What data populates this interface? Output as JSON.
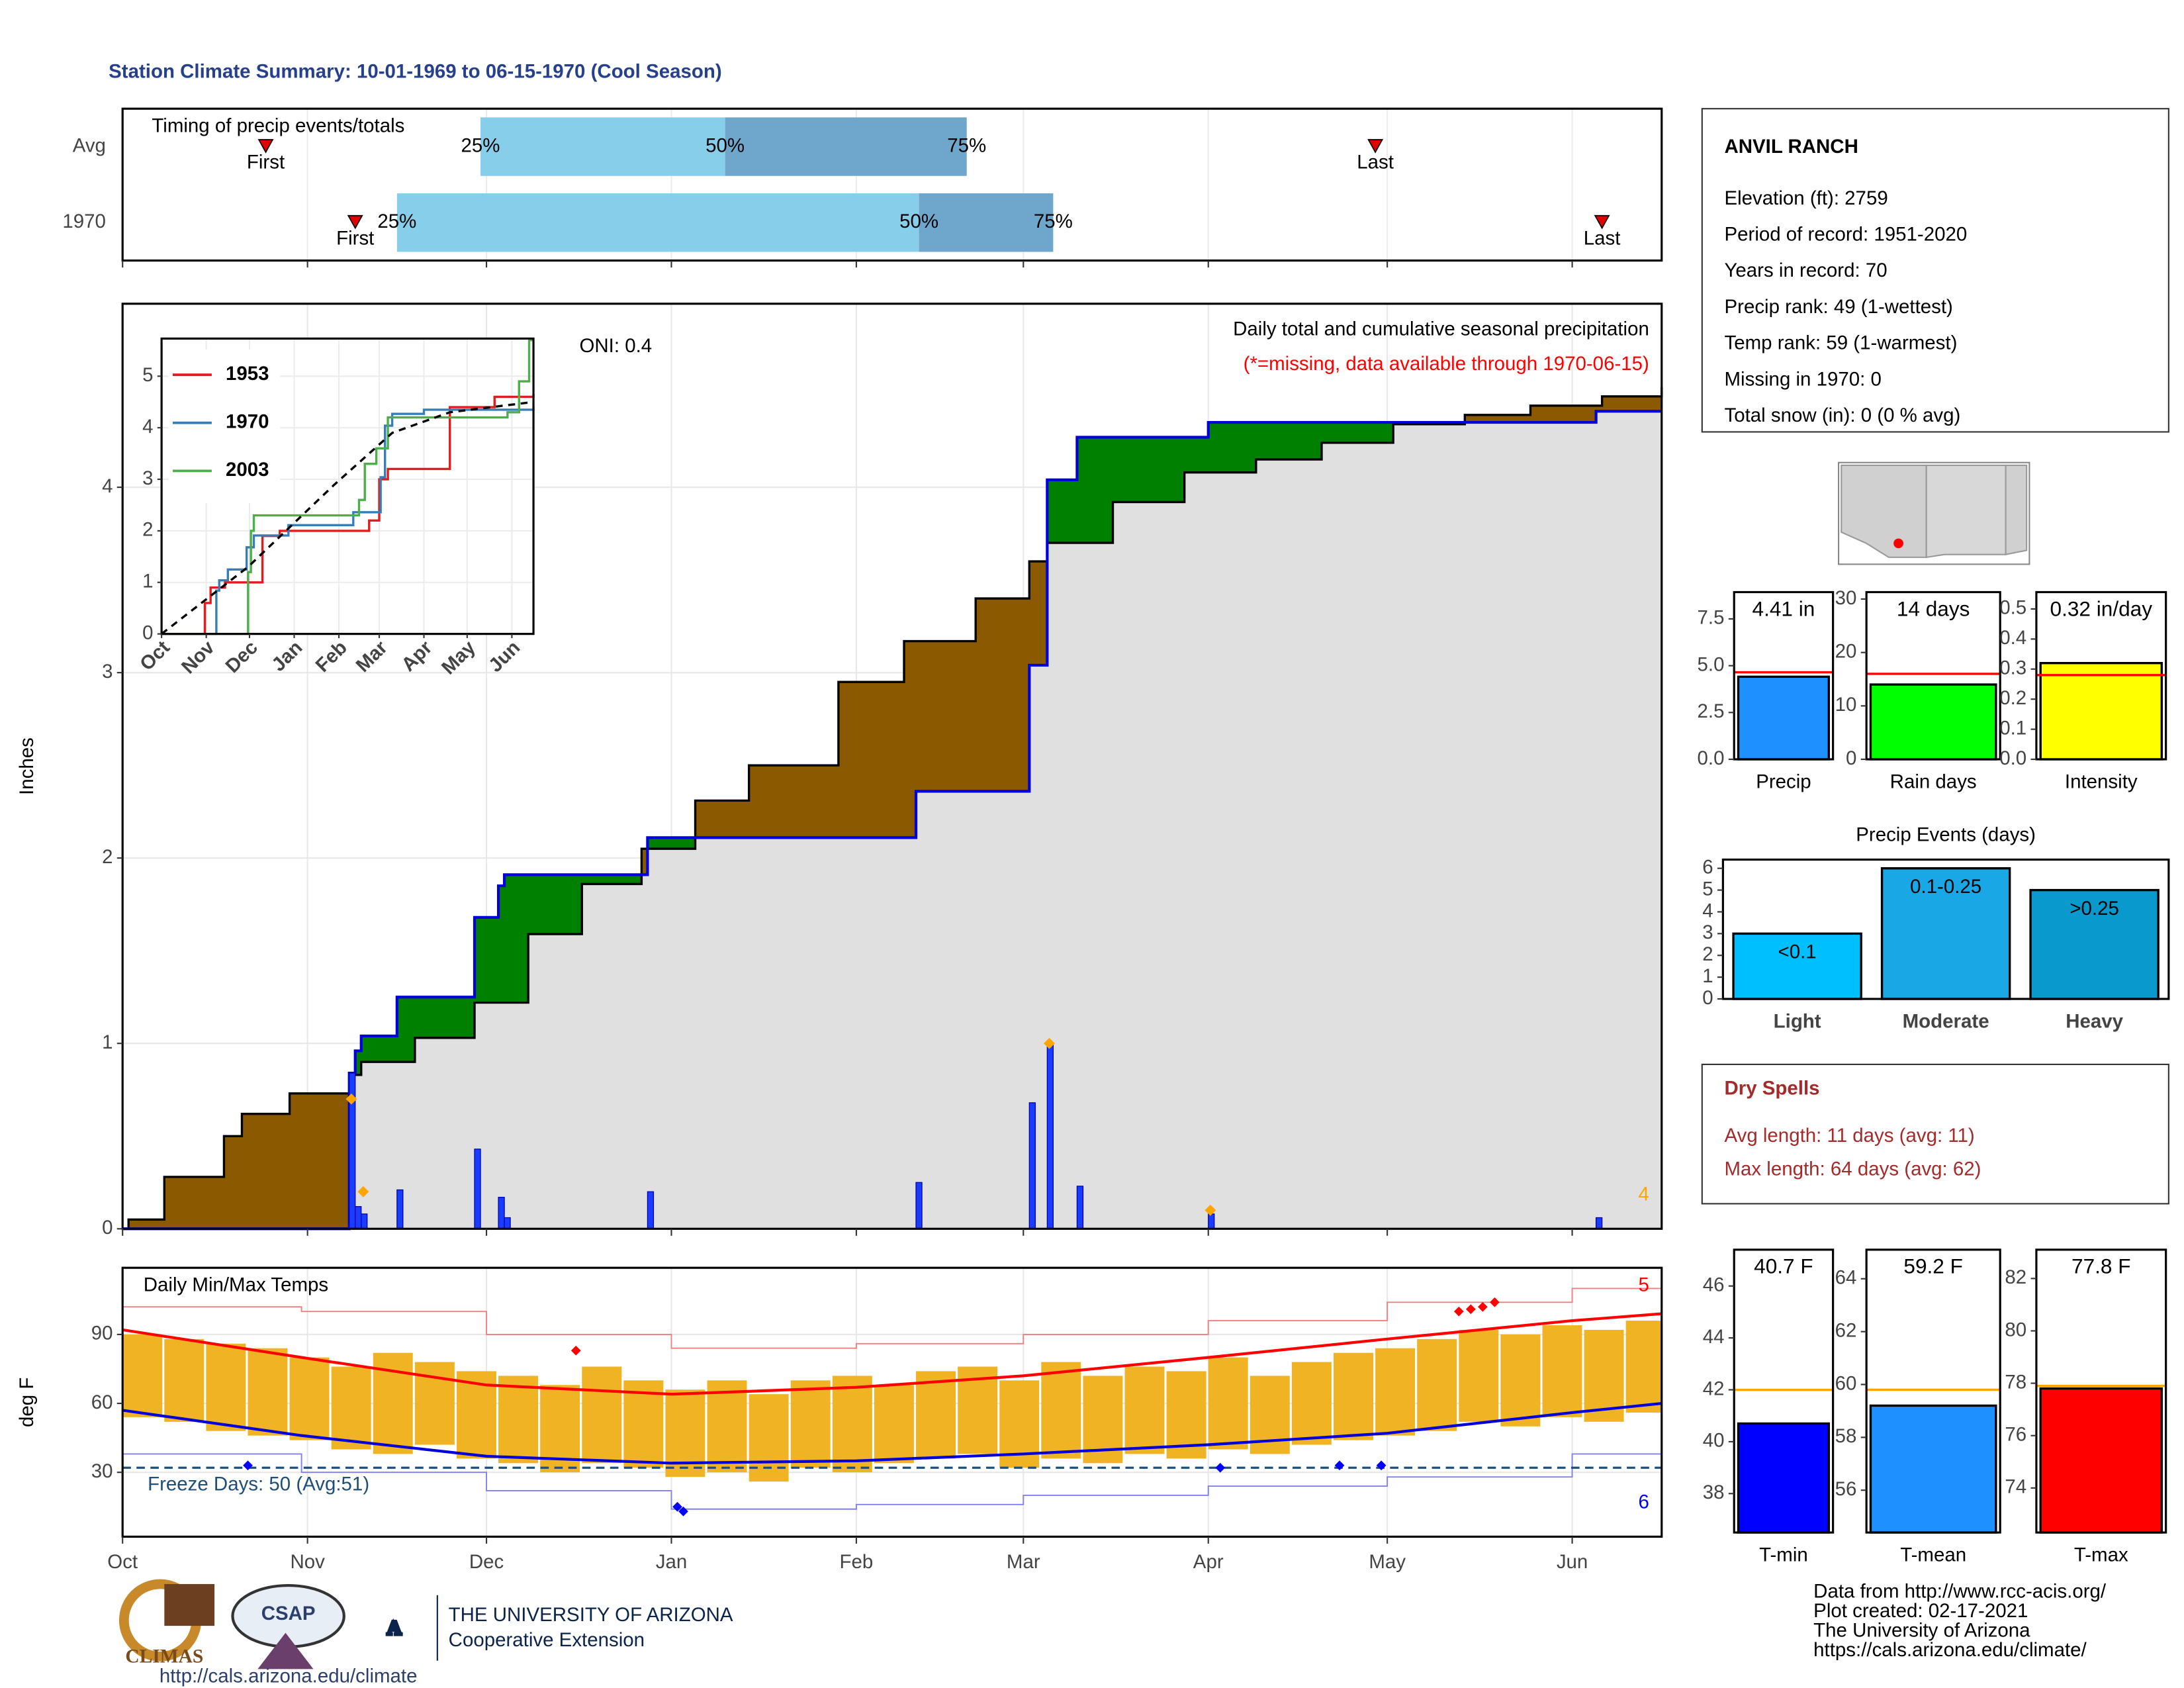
{
  "title": "Station Climate Summary: 10-01-1969 to 06-15-1970 (Cool Season)",
  "chart_data": [
    {
      "type": "timing",
      "title": "Timing of precip events/totals",
      "xlim": [
        0,
        258
      ],
      "xticks": [
        0,
        31,
        61,
        92,
        123,
        151,
        182,
        212,
        243
      ],
      "first_label": "First",
      "last_label": "Last",
      "quantile_labels": [
        "25%",
        "50%",
        "75%"
      ],
      "colors": [
        "#87ceeb",
        "#6fa6cc"
      ],
      "marker_color": "#e00000",
      "rows": [
        {
          "name": "Avg",
          "first": 24,
          "q25": 60,
          "q50": 101,
          "q75": 141.5,
          "last": 210
        },
        {
          "name": "1970",
          "first": 39,
          "q25": 46,
          "q50": 133.5,
          "q75": 156,
          "last": 248
        }
      ]
    },
    {
      "type": "cumulative",
      "title": "Daily total and cumulative seasonal precipitation",
      "subtitle": "(*=missing, data available through 1970-06-15)",
      "annotation": "ONI: 0.4",
      "ylabel": "Inches",
      "xlim": [
        0,
        258
      ],
      "xticks": [
        0,
        31,
        61,
        92,
        123,
        151,
        182,
        212,
        243
      ],
      "ylim": [
        0,
        4.99
      ],
      "yticks": [
        0,
        1,
        2,
        3,
        4
      ],
      "grid": true,
      "colors": {
        "below": "#8b5a00",
        "above": "#008000",
        "base": "#e0e0e0",
        "avg_line": "#000000",
        "current_line": "#0000dd",
        "daily": "#1a3cff",
        "markers": "#ffa500"
      },
      "avg": {
        "x": [
          0,
          1,
          7,
          17,
          20,
          28,
          38,
          40,
          49,
          59,
          68,
          77,
          87,
          96,
          105,
          120,
          131,
          143,
          152,
          155,
          166,
          178,
          190,
          201,
          213,
          225,
          236,
          248,
          258
        ],
        "values": [
          0,
          0.05,
          0.28,
          0.5,
          0.62,
          0.73,
          0.83,
          0.9,
          1.03,
          1.22,
          1.59,
          1.86,
          2.05,
          2.31,
          2.5,
          2.95,
          3.17,
          3.4,
          3.6,
          3.7,
          3.92,
          4.08,
          4.15,
          4.24,
          4.34,
          4.39,
          4.44,
          4.49,
          4.54
        ]
      },
      "current": {
        "x": [
          0,
          38,
          39,
          40,
          46,
          59,
          63,
          64,
          88,
          133,
          152,
          155,
          160,
          182,
          247,
          258
        ],
        "values": [
          0,
          0.84,
          0.96,
          1.04,
          1.25,
          1.68,
          1.85,
          1.91,
          2.11,
          2.36,
          3.04,
          4.04,
          4.27,
          4.35,
          4.41,
          4.41
        ]
      },
      "daily": {
        "x": [
          38,
          39,
          40,
          46,
          59,
          63,
          64,
          88,
          133,
          152,
          155,
          160,
          182,
          247
        ],
        "values": [
          0.84,
          0.12,
          0.08,
          0.21,
          0.43,
          0.17,
          0.06,
          0.2,
          0.25,
          0.68,
          1.0,
          0.23,
          0.08,
          0.06
        ]
      },
      "markers": {
        "x": [
          38,
          40,
          155,
          182
        ],
        "values": [
          0.7,
          0.2,
          1.0,
          0.1
        ],
        "count": 4
      }
    },
    {
      "type": "inset",
      "legend": "top-left",
      "xlim": [
        0,
        258
      ],
      "xticks": [
        {
          "value": 0,
          "label": "Oct"
        },
        {
          "value": 31,
          "label": "Nov"
        },
        {
          "value": 61,
          "label": "Dec"
        },
        {
          "value": 92,
          "label": "Jan"
        },
        {
          "value": 123,
          "label": "Feb"
        },
        {
          "value": 151,
          "label": "Mar"
        },
        {
          "value": 182,
          "label": "Apr"
        },
        {
          "value": 212,
          "label": "May"
        },
        {
          "value": 243,
          "label": "Jun"
        }
      ],
      "ylim": [
        0,
        5.73
      ],
      "yticks": [
        0,
        1,
        2,
        3,
        4,
        5
      ],
      "grid": true,
      "series": [
        {
          "name": "1953",
          "color": "#e41a1c",
          "x": [
            0,
            29,
            30,
            34,
            44,
            70,
            82,
            144,
            151,
            157,
            200,
            231,
            258
          ],
          "values": [
            0,
            0,
            0.6,
            0.9,
            1.0,
            1.9,
            2.0,
            2.2,
            3.0,
            3.2,
            4.4,
            4.6,
            4.65
          ]
        },
        {
          "name": "1970",
          "color": "#377eb8",
          "x": [
            0,
            38,
            40,
            46,
            59,
            64,
            88,
            133,
            152,
            155,
            160,
            182,
            258
          ],
          "values": [
            0,
            0.84,
            1.04,
            1.25,
            1.68,
            1.91,
            2.11,
            2.36,
            3.04,
            4.04,
            4.27,
            4.35,
            4.41
          ]
        },
        {
          "name": "2003",
          "color": "#4daf4a",
          "x": [
            0,
            58,
            60,
            62,
            64,
            137,
            141,
            149,
            157,
            240,
            248,
            255,
            258
          ],
          "values": [
            0,
            0,
            1.2,
            2.0,
            2.3,
            2.6,
            3.3,
            3.6,
            4.2,
            4.3,
            4.9,
            5.7,
            5.7
          ]
        }
      ],
      "avg": {
        "color": "#000000",
        "x": [
          0,
          60,
          120,
          160,
          200,
          258
        ],
        "values": [
          0,
          1.3,
          2.9,
          3.9,
          4.3,
          4.5
        ]
      }
    },
    {
      "type": "summary_bar",
      "categories": [
        "Precip"
      ],
      "values": [
        4.41
      ],
      "value_labels": [
        "4.41 in"
      ],
      "avg": 4.65,
      "avg_color": "#ff0000",
      "color": "#1e90ff",
      "ylim": [
        0,
        8.93
      ],
      "yticks": [
        {
          "value": 0,
          "label": "0.0"
        },
        {
          "value": 2.5,
          "label": "2.5"
        },
        {
          "value": 5,
          "label": "5.0"
        },
        {
          "value": 7.5,
          "label": "7.5"
        }
      ]
    },
    {
      "type": "summary_bar",
      "categories": [
        "Rain days"
      ],
      "values": [
        14
      ],
      "value_labels": [
        "14 days"
      ],
      "avg": 16,
      "avg_color": "#ff0000",
      "color": "#00ff00",
      "ylim": [
        0,
        31.3
      ],
      "yticks": [
        0,
        10,
        20,
        30
      ]
    },
    {
      "type": "summary_bar",
      "categories": [
        "Intensity"
      ],
      "values": [
        0.32
      ],
      "value_labels": [
        "0.32 in/day"
      ],
      "avg": 0.28,
      "avg_color": "#ff0000",
      "color": "#ffff00",
      "ylim": [
        0,
        0.556
      ],
      "yticks": [
        {
          "value": 0,
          "label": "0.0"
        },
        0.1,
        0.2,
        0.3,
        0.4,
        0.5
      ]
    },
    {
      "type": "bar",
      "title": "Precip Events (days)",
      "categories": [
        "Light",
        "Moderate",
        "Heavy"
      ],
      "bar_labels": [
        "<0.1",
        "0.1-0.25",
        ">0.25"
      ],
      "values": [
        3,
        6,
        5
      ],
      "colors": [
        "#00bfff",
        "#1aa7e6",
        "#0a99cc"
      ],
      "ylim": [
        0,
        6.4
      ],
      "yticks": [
        0,
        1,
        2,
        3,
        4,
        5,
        6
      ]
    },
    {
      "type": "temps",
      "title": "Daily Min/Max Temps",
      "ylabel": "deg F",
      "annotation": "Freeze Days: 50 (Avg:51)",
      "xlim": [
        0,
        258
      ],
      "xticks": [
        {
          "value": 0,
          "label": "Oct"
        },
        {
          "value": 31,
          "label": "Nov"
        },
        {
          "value": 61,
          "label": "Dec"
        },
        {
          "value": 92,
          "label": "Jan"
        },
        {
          "value": 123,
          "label": "Feb"
        },
        {
          "value": 151,
          "label": "Mar"
        },
        {
          "value": 182,
          "label": "Apr"
        },
        {
          "value": 212,
          "label": "May"
        },
        {
          "value": 243,
          "label": "Jun"
        }
      ],
      "ylim": [
        2,
        119
      ],
      "yticks": [
        30,
        60,
        90
      ],
      "grid": true,
      "freeze": 32,
      "colors": {
        "daily": "#f0b323",
        "normal_max": "#ff0000",
        "normal_min": "#0000dd",
        "record_max": "#f08080",
        "record_min": "#8080f0",
        "freeze": "#1f4e79"
      },
      "daily": {
        "x": [
          0,
          7,
          14,
          21,
          28,
          35,
          42,
          49,
          56,
          63,
          70,
          77,
          84,
          91,
          98,
          105,
          112,
          119,
          126,
          133,
          140,
          147,
          154,
          161,
          168,
          175,
          182,
          189,
          196,
          203,
          210,
          217,
          224,
          231,
          238,
          245,
          252
        ],
        "high": [
          90,
          88,
          86,
          84,
          80,
          76,
          82,
          78,
          74,
          72,
          68,
          76,
          70,
          66,
          70,
          64,
          70,
          72,
          68,
          74,
          76,
          70,
          78,
          72,
          76,
          74,
          80,
          72,
          78,
          82,
          84,
          88,
          92,
          90,
          94,
          92,
          96
        ],
        "low": [
          54,
          52,
          48,
          46,
          44,
          40,
          38,
          42,
          36,
          34,
          30,
          34,
          32,
          28,
          30,
          26,
          32,
          30,
          34,
          36,
          38,
          32,
          36,
          34,
          38,
          36,
          40,
          38,
          42,
          44,
          46,
          48,
          52,
          50,
          54,
          52,
          56
        ]
      },
      "normal_max": {
        "x": [
          0,
          30,
          61,
          92,
          123,
          151,
          182,
          212,
          243,
          258
        ],
        "values": [
          92,
          80,
          68,
          64,
          67,
          72,
          80,
          88,
          96,
          99
        ]
      },
      "normal_min": {
        "x": [
          0,
          30,
          61,
          92,
          123,
          151,
          182,
          212,
          243,
          258
        ],
        "values": [
          57,
          46,
          37,
          34,
          35,
          38,
          42,
          47,
          56,
          60
        ]
      },
      "record_max": {
        "x": [
          0,
          30,
          61,
          92,
          123,
          151,
          182,
          212,
          243,
          258
        ],
        "values": [
          102,
          100,
          90,
          84,
          86,
          90,
          96,
          104,
          110,
          112
        ]
      },
      "record_min": {
        "x": [
          0,
          30,
          61,
          92,
          123,
          151,
          182,
          212,
          243,
          258
        ],
        "values": [
          38,
          30,
          22,
          14,
          16,
          20,
          24,
          28,
          38,
          45
        ]
      },
      "record_highs": {
        "x": [
          76,
          224,
          226,
          228,
          230
        ],
        "values": [
          83,
          100,
          101,
          102,
          104
        ],
        "count": 5
      },
      "record_lows": {
        "x": [
          21,
          93,
          94,
          184,
          204,
          211
        ],
        "values": [
          33,
          15,
          13,
          32,
          33,
          33
        ],
        "count": 6
      }
    },
    {
      "type": "summary_bar",
      "categories": [
        "T-min"
      ],
      "values": [
        40.7
      ],
      "value_labels": [
        "40.7 F"
      ],
      "avg": 42,
      "avg_color": "#ffa500",
      "color": "#0000ff",
      "ylim": [
        36.5,
        47.4
      ],
      "yticks": [
        38,
        40,
        42,
        44,
        46
      ]
    },
    {
      "type": "summary_bar",
      "categories": [
        "T-mean"
      ],
      "values": [
        59.2
      ],
      "value_labels": [
        "59.2 F"
      ],
      "avg": 59.8,
      "avg_color": "#ffa500",
      "color": "#1e90ff",
      "ylim": [
        54.4,
        65.1
      ],
      "yticks": [
        56,
        58,
        60,
        62,
        64
      ]
    },
    {
      "type": "summary_bar",
      "categories": [
        "T-max"
      ],
      "values": [
        77.8
      ],
      "value_labels": [
        "77.8 F"
      ],
      "avg": 77.9,
      "avg_color": "#ffa500",
      "color": "#ff0000",
      "ylim": [
        72.3,
        83.1
      ],
      "yticks": [
        74,
        76,
        78,
        80,
        82
      ]
    }
  ],
  "station": {
    "name": "ANVIL RANCH",
    "lines": [
      "Elevation (ft): 2759",
      "Period of record: 1951-2020",
      "Years in record: 70",
      "Precip rank: 49 (1-wettest)",
      "Temp rank: 59 (1-warmest)",
      "Missing in 1970: 0",
      "Total snow (in): 0 (0 % avg)"
    ]
  },
  "dry_spells": {
    "title": "Dry Spells",
    "lines": [
      "Avg length: 11 days (avg: 11)",
      "Max length: 64 days (avg: 62)"
    ]
  },
  "credits": [
    "Data from http://www.rcc-acis.org/",
    "Plot created: 02-17-2021",
    "The University of Arizona",
    "https://cals.arizona.edu/climate/"
  ],
  "logos": {
    "climas": "CLIMAS",
    "csap": "CSAP",
    "csap_url": "http://cals.arizona.edu/climate",
    "ua_letter": "A",
    "ua_small": "THE UNIVERSITY OF ARIZONA",
    "ua": "Cooperative Extension"
  }
}
